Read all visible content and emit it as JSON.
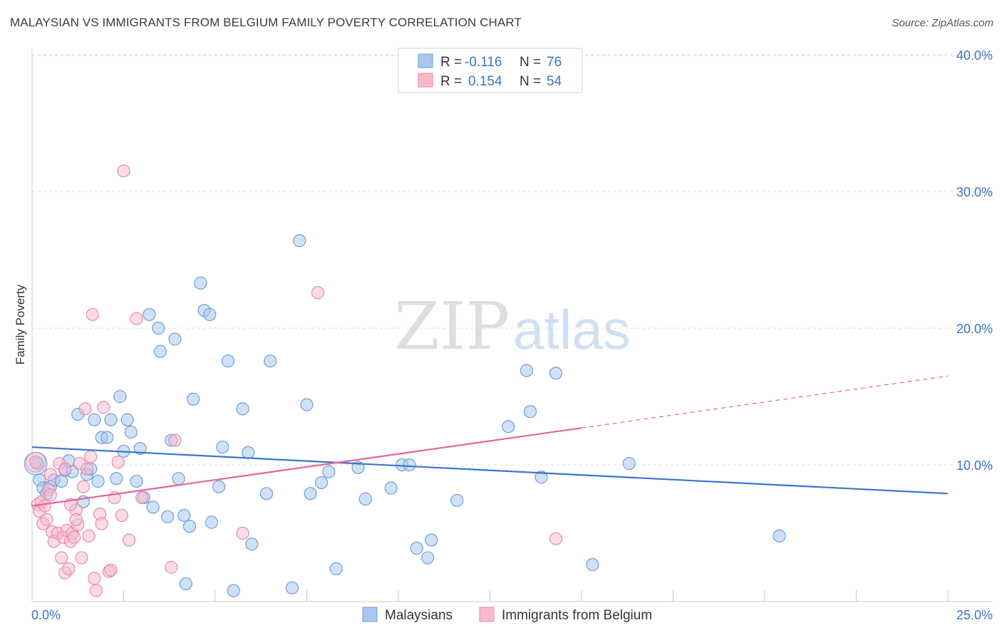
{
  "title": "MALAYSIAN VS IMMIGRANTS FROM BELGIUM FAMILY POVERTY CORRELATION CHART",
  "source": "Source: ZipAtlas.com",
  "watermark": {
    "zip": "ZIP",
    "atlas": "atlas"
  },
  "legend_top": [
    {
      "r_label": "R =",
      "r_value": "-0.116",
      "n_label": "N =",
      "n_value": "76"
    },
    {
      "r_label": "R =",
      "r_value": "0.154",
      "n_label": "N =",
      "n_value": "54"
    }
  ],
  "legend_bottom": [
    "Malaysians",
    "Immigrants from Belgium"
  ],
  "colors": {
    "blue_fill": "#a9c8ef",
    "blue_stroke": "#6d9edb",
    "blue_line": "#3a76c8",
    "pink_fill": "#f7b9cd",
    "pink_stroke": "#e88aa9",
    "pink_line": "#e36691",
    "grid": "#dddddd",
    "tick_text": "#3b73c4"
  },
  "chart_data": {
    "type": "scatter",
    "xlabel": "",
    "ylabel": "Family Poverty",
    "xlim": [
      0,
      25
    ],
    "ylim": [
      0,
      40
    ],
    "x_tick_labels": [
      "0.0%",
      "25.0%"
    ],
    "y_ticks": [
      10,
      20,
      30,
      40
    ],
    "y_tick_labels": [
      "10.0%",
      "20.0%",
      "30.0%",
      "40.0%"
    ],
    "series": [
      {
        "name": "Malaysians",
        "r": -0.116,
        "n": 76,
        "trend": {
          "x": [
            0,
            25
          ],
          "y": [
            11.3,
            7.9
          ]
        },
        "points": [
          [
            0.15,
            10.1
          ],
          [
            0.2,
            8.9
          ],
          [
            0.3,
            8.3
          ],
          [
            0.4,
            7.9
          ],
          [
            0.5,
            8.4
          ],
          [
            0.6,
            8.9
          ],
          [
            0.8,
            8.8
          ],
          [
            0.9,
            9.6
          ],
          [
            1.0,
            10.3
          ],
          [
            1.1,
            9.5
          ],
          [
            1.25,
            13.7
          ],
          [
            1.4,
            7.3
          ],
          [
            1.5,
            9.3
          ],
          [
            1.6,
            9.7
          ],
          [
            1.7,
            13.3
          ],
          [
            1.8,
            8.8
          ],
          [
            1.9,
            12.0
          ],
          [
            2.05,
            12.0
          ],
          [
            2.15,
            13.3
          ],
          [
            2.3,
            9.0
          ],
          [
            2.4,
            15.0
          ],
          [
            2.5,
            11.0
          ],
          [
            2.6,
            13.3
          ],
          [
            2.7,
            12.4
          ],
          [
            2.85,
            8.8
          ],
          [
            2.95,
            11.2
          ],
          [
            3.05,
            7.6
          ],
          [
            3.2,
            21.0
          ],
          [
            3.3,
            6.9
          ],
          [
            3.45,
            20.0
          ],
          [
            3.5,
            18.3
          ],
          [
            3.7,
            6.2
          ],
          [
            3.8,
            11.8
          ],
          [
            3.9,
            19.2
          ],
          [
            4.0,
            9.0
          ],
          [
            4.15,
            6.3
          ],
          [
            4.3,
            5.5
          ],
          [
            4.4,
            14.8
          ],
          [
            4.6,
            23.3
          ],
          [
            4.7,
            21.3
          ],
          [
            4.85,
            21.0
          ],
          [
            4.9,
            5.8
          ],
          [
            5.1,
            8.4
          ],
          [
            5.2,
            11.3
          ],
          [
            5.35,
            17.6
          ],
          [
            5.5,
            0.8
          ],
          [
            5.75,
            14.1
          ],
          [
            5.9,
            10.9
          ],
          [
            6.0,
            4.2
          ],
          [
            6.4,
            7.9
          ],
          [
            6.5,
            17.6
          ],
          [
            7.1,
            1.0
          ],
          [
            7.3,
            26.4
          ],
          [
            7.5,
            14.4
          ],
          [
            7.6,
            7.9
          ],
          [
            7.9,
            8.7
          ],
          [
            8.1,
            9.5
          ],
          [
            8.3,
            2.4
          ],
          [
            8.9,
            9.8
          ],
          [
            9.1,
            7.5
          ],
          [
            9.8,
            8.3
          ],
          [
            10.1,
            10.0
          ],
          [
            10.3,
            10.0
          ],
          [
            10.5,
            3.9
          ],
          [
            10.8,
            3.2
          ],
          [
            10.9,
            4.5
          ],
          [
            11.6,
            7.4
          ],
          [
            13.0,
            12.8
          ],
          [
            13.5,
            16.9
          ],
          [
            13.6,
            13.9
          ],
          [
            13.9,
            9.1
          ],
          [
            14.3,
            16.7
          ],
          [
            15.3,
            2.7
          ],
          [
            16.3,
            10.1
          ],
          [
            20.4,
            4.8
          ],
          [
            4.2,
            1.3
          ]
        ]
      },
      {
        "name": "Immigrants from Belgium",
        "r": 0.154,
        "n": 54,
        "trend": {
          "x": [
            0,
            15
          ],
          "y": [
            7.0,
            12.7
          ]
        },
        "trend_dashed": {
          "x": [
            15,
            25
          ],
          "y": [
            12.7,
            16.5
          ]
        },
        "points": [
          [
            0.1,
            10.2
          ],
          [
            0.15,
            7.1
          ],
          [
            0.2,
            6.6
          ],
          [
            0.25,
            7.3
          ],
          [
            0.3,
            5.7
          ],
          [
            0.35,
            7.0
          ],
          [
            0.4,
            6.0
          ],
          [
            0.45,
            8.2
          ],
          [
            0.5,
            7.8
          ],
          [
            0.55,
            5.1
          ],
          [
            0.6,
            4.4
          ],
          [
            0.7,
            5.0
          ],
          [
            0.75,
            10.1
          ],
          [
            0.8,
            3.2
          ],
          [
            0.85,
            4.7
          ],
          [
            0.9,
            2.1
          ],
          [
            0.95,
            5.2
          ],
          [
            1.0,
            2.4
          ],
          [
            1.05,
            4.4
          ],
          [
            1.1,
            5.0
          ],
          [
            1.15,
            4.7
          ],
          [
            1.2,
            6.7
          ],
          [
            1.25,
            5.6
          ],
          [
            1.3,
            10.1
          ],
          [
            1.35,
            3.2
          ],
          [
            1.4,
            8.4
          ],
          [
            1.45,
            14.1
          ],
          [
            1.55,
            4.8
          ],
          [
            1.6,
            10.6
          ],
          [
            1.65,
            21.0
          ],
          [
            1.7,
            1.7
          ],
          [
            1.75,
            0.8
          ],
          [
            1.85,
            6.4
          ],
          [
            1.9,
            5.7
          ],
          [
            1.95,
            14.2
          ],
          [
            2.1,
            2.2
          ],
          [
            2.15,
            2.3
          ],
          [
            2.25,
            7.6
          ],
          [
            2.35,
            10.2
          ],
          [
            2.45,
            6.3
          ],
          [
            2.5,
            31.5
          ],
          [
            2.65,
            4.5
          ],
          [
            2.85,
            20.7
          ],
          [
            3.0,
            7.6
          ],
          [
            3.9,
            11.8
          ],
          [
            3.8,
            2.5
          ],
          [
            5.75,
            5.0
          ],
          [
            7.8,
            22.6
          ],
          [
            14.3,
            4.6
          ],
          [
            0.9,
            9.7
          ],
          [
            0.5,
            9.3
          ],
          [
            1.05,
            7.1
          ],
          [
            1.5,
            9.7
          ],
          [
            1.2,
            6.0
          ]
        ]
      }
    ]
  }
}
